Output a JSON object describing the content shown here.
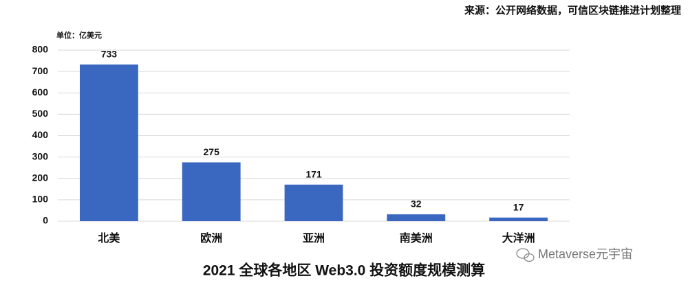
{
  "chart_data": {
    "type": "bar",
    "title": "2021 全球各地区 Web3.0 投资额度规模测算",
    "source": "来源：公开网络数据，可信区块链推进计划整理",
    "unit_label": "单位：亿美元",
    "watermark": "Metaverse元宇宙",
    "categories": [
      "北美",
      "欧洲",
      "亚洲",
      "南美洲",
      "大洋洲"
    ],
    "values": [
      733,
      275,
      171,
      32,
      17
    ],
    "color": "#3a67bf",
    "ylim": [
      0,
      800
    ],
    "yticks": [
      0,
      100,
      200,
      300,
      400,
      500,
      600,
      700,
      800
    ],
    "grid": true
  }
}
